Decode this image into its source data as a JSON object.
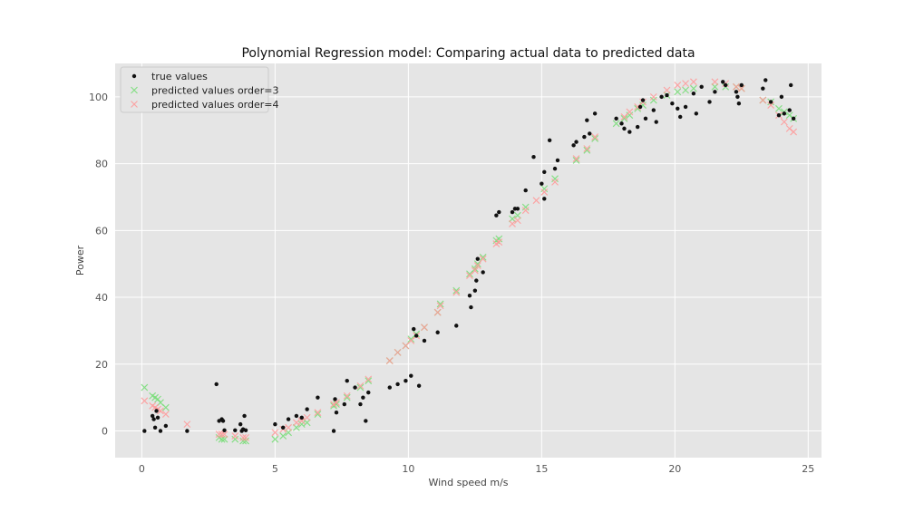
{
  "chart_data": {
    "type": "scatter",
    "title": "Polynomial Regression model: Comparing actual data to predicted data",
    "xlabel": "Wind speed m/s",
    "ylabel": "Power",
    "xlim": [
      -1.0,
      25.5
    ],
    "ylim": [
      -8,
      110
    ],
    "xticks": [
      0,
      5,
      10,
      15,
      20,
      25
    ],
    "yticks": [
      0,
      20,
      40,
      60,
      80,
      100
    ],
    "grid": true,
    "legend_position": "top-left",
    "colors": {
      "background": "#e5e5e5",
      "grid": "#ffffff",
      "true": "#111111",
      "order3": "#77dd77",
      "order4": "#ff9999"
    },
    "series": [
      {
        "name": "true values",
        "marker": "dot",
        "points": [
          [
            0.1,
            0
          ],
          [
            0.4,
            4.5
          ],
          [
            0.45,
            3.5
          ],
          [
            0.5,
            1
          ],
          [
            0.55,
            6
          ],
          [
            0.6,
            4
          ],
          [
            0.7,
            0
          ],
          [
            0.9,
            1.5
          ],
          [
            1.7,
            0
          ],
          [
            2.8,
            14
          ],
          [
            2.9,
            3
          ],
          [
            3.0,
            3.5
          ],
          [
            3.05,
            3
          ],
          [
            3.1,
            0.2
          ],
          [
            3.5,
            0.2
          ],
          [
            3.7,
            2
          ],
          [
            3.75,
            0
          ],
          [
            3.8,
            0.5
          ],
          [
            3.85,
            4.5
          ],
          [
            3.9,
            0.2
          ],
          [
            5.0,
            2
          ],
          [
            5.3,
            1
          ],
          [
            5.5,
            3.5
          ],
          [
            5.8,
            4.5
          ],
          [
            6.0,
            4
          ],
          [
            6.2,
            6.5
          ],
          [
            6.6,
            10
          ],
          [
            7.2,
            0
          ],
          [
            7.25,
            9.5
          ],
          [
            7.3,
            5.5
          ],
          [
            7.6,
            8
          ],
          [
            7.7,
            15
          ],
          [
            8.0,
            13
          ],
          [
            8.2,
            8
          ],
          [
            8.3,
            10
          ],
          [
            8.4,
            3
          ],
          [
            8.5,
            11.5
          ],
          [
            9.3,
            13
          ],
          [
            9.6,
            14
          ],
          [
            9.9,
            15
          ],
          [
            10.1,
            16.5
          ],
          [
            10.2,
            30.5
          ],
          [
            10.3,
            28.5
          ],
          [
            10.4,
            13.5
          ],
          [
            10.6,
            27
          ],
          [
            11.1,
            29.5
          ],
          [
            11.8,
            31.5
          ],
          [
            12.3,
            40.5
          ],
          [
            12.35,
            37
          ],
          [
            12.5,
            42
          ],
          [
            12.55,
            45
          ],
          [
            12.6,
            51.5
          ],
          [
            12.8,
            47.5
          ],
          [
            13.3,
            64.5
          ],
          [
            13.4,
            65.5
          ],
          [
            13.9,
            65.5
          ],
          [
            14.0,
            66.5
          ],
          [
            14.1,
            66.5
          ],
          [
            14.4,
            72
          ],
          [
            14.7,
            82
          ],
          [
            15.0,
            74
          ],
          [
            15.1,
            69.5
          ],
          [
            15.1,
            77.5
          ],
          [
            15.3,
            87
          ],
          [
            15.5,
            78.5
          ],
          [
            15.6,
            81
          ],
          [
            16.2,
            85.5
          ],
          [
            16.3,
            86.5
          ],
          [
            16.6,
            88
          ],
          [
            16.7,
            93
          ],
          [
            16.8,
            89
          ],
          [
            17.0,
            95
          ],
          [
            17.8,
            93.5
          ],
          [
            18.0,
            92
          ],
          [
            18.1,
            90.5
          ],
          [
            18.3,
            89.5
          ],
          [
            18.6,
            91
          ],
          [
            18.7,
            97
          ],
          [
            18.8,
            99
          ],
          [
            18.9,
            93.5
          ],
          [
            19.2,
            96
          ],
          [
            19.3,
            92.5
          ],
          [
            19.5,
            100
          ],
          [
            19.7,
            100.5
          ],
          [
            19.9,
            98
          ],
          [
            20.1,
            96.5
          ],
          [
            20.2,
            94
          ],
          [
            20.4,
            97
          ],
          [
            20.7,
            101
          ],
          [
            20.8,
            95
          ],
          [
            21.0,
            103
          ],
          [
            21.3,
            98.5
          ],
          [
            21.5,
            101.5
          ],
          [
            21.8,
            104.5
          ],
          [
            21.9,
            103.5
          ],
          [
            22.3,
            101.5
          ],
          [
            22.35,
            100
          ],
          [
            22.4,
            98
          ],
          [
            22.5,
            103.5
          ],
          [
            23.3,
            102.5
          ],
          [
            23.4,
            105
          ],
          [
            23.6,
            98.5
          ],
          [
            23.9,
            94.5
          ],
          [
            24.0,
            100
          ],
          [
            24.1,
            95
          ],
          [
            24.3,
            96
          ],
          [
            24.35,
            103.5
          ],
          [
            24.45,
            93.5
          ]
        ]
      },
      {
        "name": "predicted values order=3",
        "marker": "x",
        "points": [
          [
            0.1,
            13
          ],
          [
            0.4,
            10.5
          ],
          [
            0.5,
            10
          ],
          [
            0.6,
            9.5
          ],
          [
            0.7,
            8.5
          ],
          [
            0.9,
            7
          ],
          [
            2.9,
            -2
          ],
          [
            3.0,
            -2.5
          ],
          [
            3.1,
            -2.5
          ],
          [
            3.5,
            -2.5
          ],
          [
            3.8,
            -3
          ],
          [
            3.9,
            -3
          ],
          [
            5.0,
            -2.5
          ],
          [
            5.3,
            -1.5
          ],
          [
            5.5,
            -0.5
          ],
          [
            5.8,
            1
          ],
          [
            6.0,
            2
          ],
          [
            6.2,
            2.5
          ],
          [
            6.6,
            5
          ],
          [
            7.2,
            7.5
          ],
          [
            7.3,
            8
          ],
          [
            7.7,
            10
          ],
          [
            8.2,
            13
          ],
          [
            8.5,
            15
          ],
          [
            9.3,
            21
          ],
          [
            9.6,
            23.5
          ],
          [
            9.9,
            25.5
          ],
          [
            10.1,
            27.5
          ],
          [
            10.3,
            29
          ],
          [
            10.6,
            31
          ],
          [
            11.1,
            35.5
          ],
          [
            11.2,
            38
          ],
          [
            11.8,
            42
          ],
          [
            12.3,
            47
          ],
          [
            12.5,
            48.5
          ],
          [
            12.6,
            50
          ],
          [
            12.8,
            52
          ],
          [
            13.3,
            57
          ],
          [
            13.4,
            57.5
          ],
          [
            13.9,
            63.5
          ],
          [
            14.1,
            64.5
          ],
          [
            14.4,
            67
          ],
          [
            15.1,
            72.5
          ],
          [
            15.5,
            75.5
          ],
          [
            16.3,
            81
          ],
          [
            16.7,
            84
          ],
          [
            17.0,
            87.5
          ],
          [
            17.8,
            92
          ],
          [
            18.1,
            93.5
          ],
          [
            18.3,
            94.5
          ],
          [
            18.6,
            96.5
          ],
          [
            18.8,
            97.5
          ],
          [
            19.2,
            99
          ],
          [
            19.7,
            100.5
          ],
          [
            20.1,
            101.5
          ],
          [
            20.4,
            102
          ],
          [
            20.7,
            102.5
          ],
          [
            21.5,
            103
          ],
          [
            21.9,
            103
          ],
          [
            22.3,
            103
          ],
          [
            22.5,
            102.5
          ],
          [
            23.3,
            99
          ],
          [
            23.6,
            98.5
          ],
          [
            23.9,
            96.5
          ],
          [
            24.1,
            95.5
          ],
          [
            24.3,
            94.5
          ],
          [
            24.45,
            93.5
          ]
        ]
      },
      {
        "name": "predicted values order=4",
        "marker": "x",
        "points": [
          [
            0.1,
            9
          ],
          [
            0.4,
            7.5
          ],
          [
            0.5,
            7
          ],
          [
            0.6,
            6.5
          ],
          [
            0.7,
            6
          ],
          [
            0.9,
            5
          ],
          [
            1.7,
            2
          ],
          [
            2.9,
            -1
          ],
          [
            3.0,
            -1
          ],
          [
            3.1,
            -1
          ],
          [
            3.5,
            -1.5
          ],
          [
            3.8,
            -2
          ],
          [
            3.9,
            -2
          ],
          [
            5.0,
            -0.5
          ],
          [
            5.3,
            0.5
          ],
          [
            5.5,
            1
          ],
          [
            5.8,
            2.5
          ],
          [
            6.0,
            3
          ],
          [
            6.2,
            4
          ],
          [
            6.6,
            5.5
          ],
          [
            7.2,
            8
          ],
          [
            7.3,
            8.5
          ],
          [
            7.7,
            10.5
          ],
          [
            8.2,
            13.5
          ],
          [
            8.5,
            15.5
          ],
          [
            9.3,
            21
          ],
          [
            9.6,
            23.5
          ],
          [
            9.9,
            25.5
          ],
          [
            10.1,
            27
          ],
          [
            10.3,
            28.5
          ],
          [
            10.6,
            31
          ],
          [
            11.1,
            35.5
          ],
          [
            11.2,
            37.5
          ],
          [
            11.8,
            41.5
          ],
          [
            12.3,
            46.5
          ],
          [
            12.5,
            48
          ],
          [
            12.6,
            49.5
          ],
          [
            12.8,
            51.5
          ],
          [
            13.3,
            56
          ],
          [
            13.4,
            56.5
          ],
          [
            13.9,
            62
          ],
          [
            14.1,
            63
          ],
          [
            14.4,
            66
          ],
          [
            14.8,
            69
          ],
          [
            15.1,
            71.5
          ],
          [
            15.5,
            74.5
          ],
          [
            16.3,
            81.5
          ],
          [
            16.7,
            84.5
          ],
          [
            17.0,
            88
          ],
          [
            18.1,
            94
          ],
          [
            18.3,
            95.5
          ],
          [
            18.6,
            97
          ],
          [
            18.8,
            98.5
          ],
          [
            19.2,
            100
          ],
          [
            19.7,
            102
          ],
          [
            20.1,
            103.5
          ],
          [
            20.4,
            104
          ],
          [
            20.7,
            104.5
          ],
          [
            21.5,
            104.5
          ],
          [
            21.9,
            104
          ],
          [
            22.3,
            103
          ],
          [
            22.5,
            102.5
          ],
          [
            23.3,
            99
          ],
          [
            23.6,
            97.5
          ],
          [
            23.9,
            94.5
          ],
          [
            24.1,
            92.5
          ],
          [
            24.3,
            90.5
          ],
          [
            24.45,
            89.5
          ]
        ]
      }
    ]
  }
}
